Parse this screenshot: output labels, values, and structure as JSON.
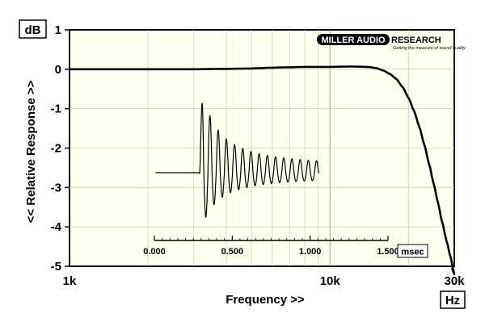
{
  "chart_data": {
    "type": "line",
    "xlabel": "Frequency >>",
    "ylabel": "<< Relative Response >>",
    "x_unit": "Hz",
    "y_unit": "dB",
    "x_scale": "log",
    "xlim": [
      1000,
      30000
    ],
    "ylim": [
      -5,
      1
    ],
    "x_tick_labels": [
      {
        "value": 1000,
        "label": "1k"
      },
      {
        "value": 10000,
        "label": "10k"
      },
      {
        "value": 30000,
        "label": "30k"
      }
    ],
    "y_ticks": [
      1,
      0,
      -1,
      -2,
      -3,
      -4,
      -5
    ],
    "grid": true,
    "series": [
      {
        "x": [
          1000,
          2000,
          3000,
          4000,
          5000,
          6000,
          7000,
          8000,
          10000,
          12000,
          14000,
          15000,
          16000,
          17000,
          18000,
          19000,
          20000,
          21000,
          22000,
          23000,
          24000,
          25000,
          26000,
          27000,
          28000,
          29000,
          30000
        ],
        "values": [
          0,
          0,
          0,
          0.01,
          0.02,
          0.04,
          0.05,
          0.06,
          0.06,
          0.07,
          0.06,
          0.03,
          -0.03,
          -0.12,
          -0.25,
          -0.45,
          -0.72,
          -1.05,
          -1.45,
          -1.9,
          -2.4,
          -2.9,
          -3.4,
          -3.9,
          -4.35,
          -4.75,
          -5.2
        ]
      }
    ],
    "inset": {
      "type": "line",
      "x_unit": "msec",
      "xlim": [
        0,
        1.5
      ],
      "x_tick_labels": [
        "0.000",
        "0.500",
        "1.000",
        "1.500"
      ],
      "impulse_start": 0.29,
      "impulse_freq_khz": 19.0,
      "impulse_decay": 2.8,
      "impulse_amplitude": 1.5
    },
    "logo": {
      "text_left": "MILLER AUDIO",
      "text_right": "RESEARCH",
      "tagline": "Getting the measure of sound quality"
    }
  }
}
